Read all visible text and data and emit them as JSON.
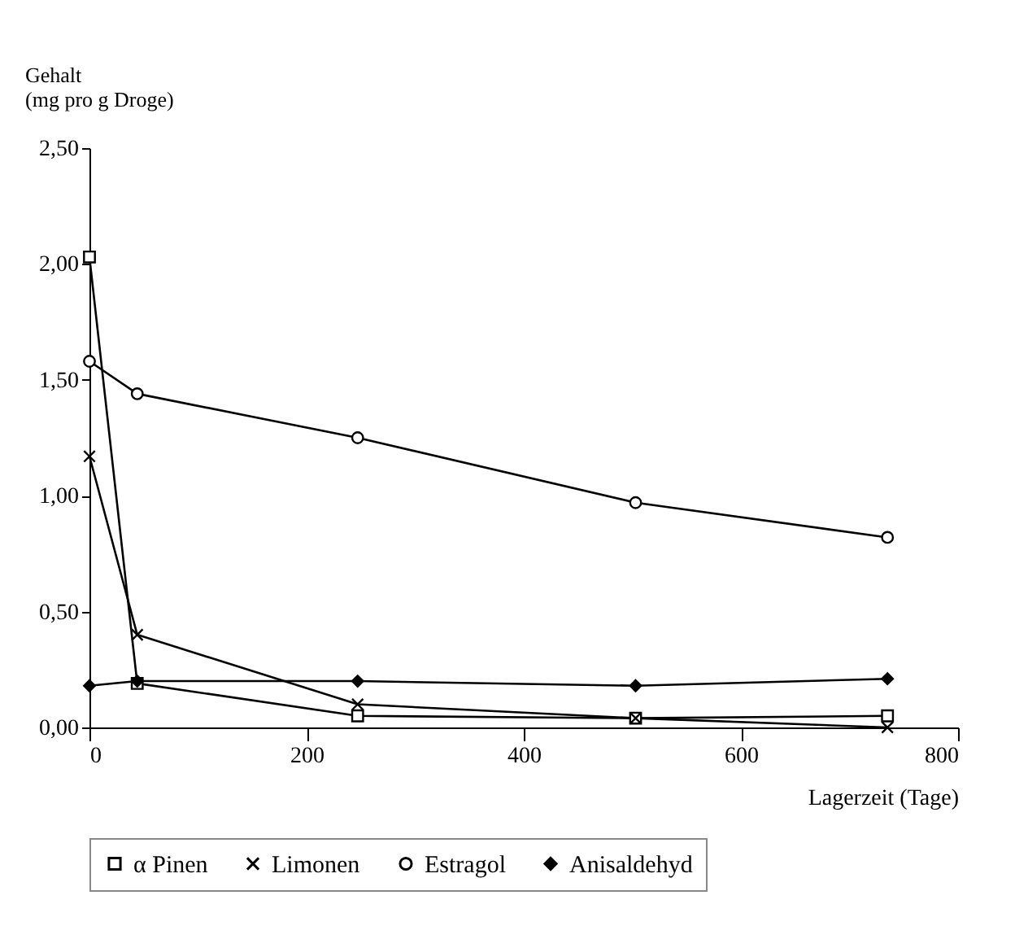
{
  "chart_data": {
    "type": "line",
    "xlabel": "Lagerzeit (Tage)",
    "ylabel": "Gehalt\n(mg pro g Droge)",
    "x": [
      0,
      44,
      247,
      503,
      735
    ],
    "series": [
      {
        "name": "α Pinen",
        "color": "#000000",
        "marker": "square",
        "values": [
          2.03,
          0.19,
          0.05,
          0.04,
          0.05
        ]
      },
      {
        "name": "Limonen",
        "color": "#000000",
        "marker": "cross",
        "values": [
          1.17,
          0.4,
          0.1,
          0.04,
          0.0
        ]
      },
      {
        "name": "Estragol",
        "color": "#000000",
        "marker": "circle",
        "values": [
          1.58,
          1.44,
          1.25,
          0.97,
          0.82
        ]
      },
      {
        "name": "Anisaldehyd",
        "color": "#000000",
        "marker": "diamond",
        "values": [
          0.18,
          0.2,
          0.2,
          0.18,
          0.21
        ]
      }
    ],
    "xlim": [
      0,
      800
    ],
    "xticks": [
      0,
      200,
      400,
      600,
      800
    ],
    "ylim": [
      0,
      2.5
    ],
    "yticks": [
      {
        "value": 0,
        "label": "0,00"
      },
      {
        "value": 0.5,
        "label": "0,50"
      },
      {
        "value": 1,
        "label": "1,00"
      },
      {
        "value": 1.5,
        "label": "1,50"
      },
      {
        "value": 2,
        "label": "2,00"
      },
      {
        "value": 2.5,
        "label": "2,50"
      }
    ],
    "grid": false,
    "legend": "bottom",
    "line_style": "solid"
  }
}
